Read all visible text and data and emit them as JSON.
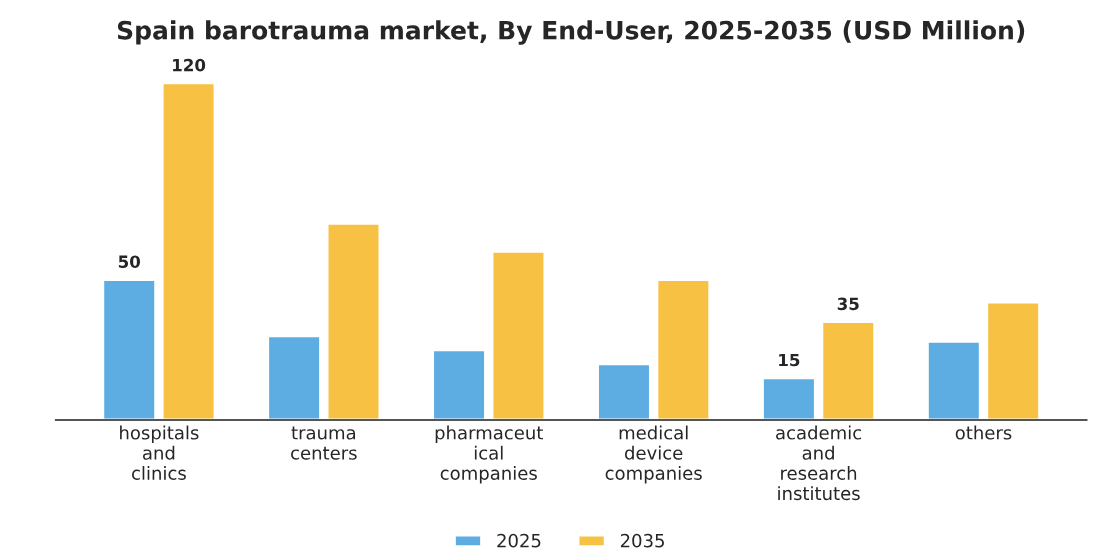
{
  "chart_data": {
    "type": "bar",
    "title": "Spain barotrauma market, By End-User, 2025-2035 (USD Million)",
    "categories": [
      "hospitals\nand\nclinics",
      "trauma\ncenters",
      "pharmaceut\nical\ncompanies",
      "medical\ndevice\ncompanies",
      "academic\nand\nresearch\ninstitutes",
      "others"
    ],
    "series": [
      {
        "name": "2025",
        "color": "#5dade2",
        "values": [
          50,
          30,
          25,
          20,
          15,
          28
        ],
        "value_labels": [
          "50",
          null,
          null,
          null,
          "15",
          null
        ]
      },
      {
        "name": "2035",
        "color": "#f7c244",
        "values": [
          120,
          70,
          60,
          50,
          35,
          42
        ],
        "value_labels": [
          "120",
          null,
          null,
          null,
          "35",
          null
        ]
      }
    ],
    "legend": "bottom",
    "grid": false
  }
}
